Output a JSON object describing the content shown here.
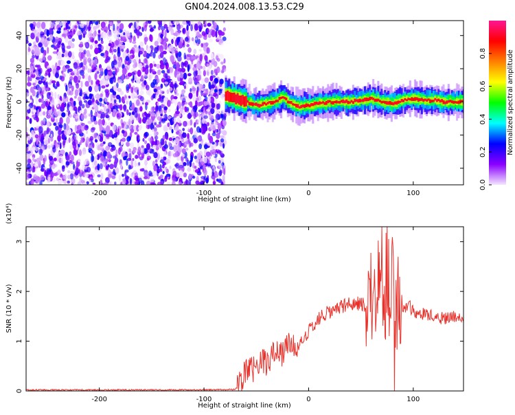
{
  "page_title": "GN04.2024.008.13.53.C29",
  "chart_data": [
    {
      "type": "heatmap",
      "xlabel": "Height of straight line (km)",
      "ylabel": "Frequency (Hz)",
      "xlim": [
        -270,
        148
      ],
      "ylim": [
        -50,
        49
      ],
      "xticks": [
        -200,
        -100,
        0,
        100
      ],
      "yticks": [
        -40,
        -20,
        0,
        20,
        40
      ],
      "colorbar": {
        "label": "Normalized spectral amplitude",
        "range": [
          0,
          1
        ],
        "ticks": [
          0.0,
          0.2,
          0.4,
          0.6,
          0.8
        ],
        "colormap": [
          "#f4e6ff",
          "#8a00ff",
          "#0000ff",
          "#00ffff",
          "#00ff00",
          "#ffff00",
          "#ff8000",
          "#ff0000",
          "#ff1493"
        ]
      },
      "noise_region_x": [
        -270,
        -80
      ],
      "ridge": {
        "x": [
          -80,
          -70,
          -60,
          -50,
          -40,
          -30,
          -25,
          -20,
          -10,
          0,
          10,
          20,
          30,
          40,
          50,
          60,
          70,
          80,
          90,
          100,
          110,
          120,
          130,
          148
        ],
        "frequency": [
          4,
          2,
          0,
          -2,
          -1,
          1,
          3,
          0,
          -3,
          -2,
          -1,
          0,
          0,
          0,
          1,
          2,
          0,
          -1,
          1,
          2,
          1,
          1,
          0,
          0
        ]
      }
    },
    {
      "type": "line",
      "xlabel": "Height of straight line (km)",
      "ylabel": "SNR (10 * v/v)",
      "scale_label": "(x10⁴)",
      "xlim": [
        -270,
        148
      ],
      "ylim": [
        0,
        3.3
      ],
      "xticks": [
        -200,
        -100,
        0,
        100
      ],
      "yticks": [
        0,
        1,
        2,
        3
      ],
      "color": "#e8312a",
      "series": [
        {
          "x": [
            -270,
            -200,
            -100,
            -70,
            -65,
            -60,
            -55,
            -50,
            -45,
            -40,
            -35,
            -30,
            -25,
            -20,
            -10,
            0,
            10,
            20,
            30,
            40,
            50,
            55,
            60,
            65,
            70,
            72,
            75,
            78,
            80,
            82,
            85,
            90,
            95,
            100,
            110,
            120,
            130,
            140,
            148
          ],
          "values": [
            0.02,
            0.02,
            0.02,
            0.03,
            0.15,
            0.45,
            0.5,
            0.35,
            0.6,
            0.55,
            0.75,
            0.9,
            0.75,
            0.9,
            0.95,
            1.2,
            1.45,
            1.6,
            1.7,
            1.75,
            1.75,
            1.7,
            2.0,
            1.8,
            2.6,
            1.0,
            2.8,
            1.5,
            3.3,
            0.7,
            2.0,
            1.6,
            1.75,
            1.6,
            1.55,
            1.5,
            1.45,
            1.5,
            1.5
          ]
        }
      ]
    }
  ]
}
